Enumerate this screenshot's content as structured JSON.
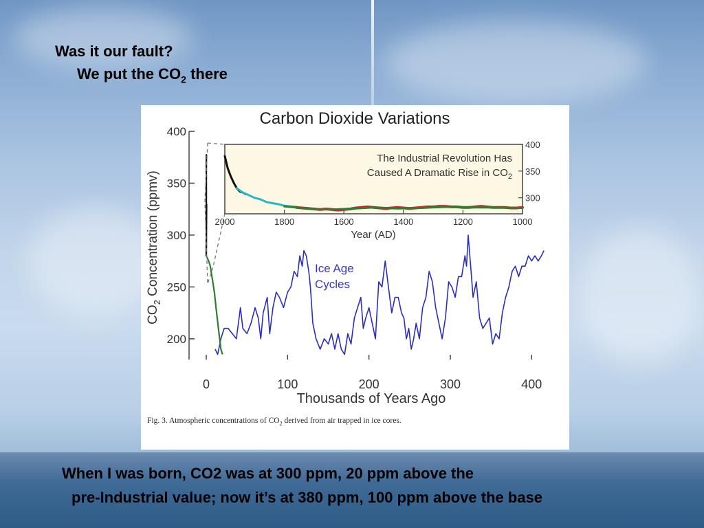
{
  "slide": {
    "heading": "Was it our fault?",
    "subheading_pre": "We put the CO",
    "subheading_sub": "2",
    "subheading_post": " there",
    "bottom_line1": "When I was born, CO2 was at 300 ppm, 20 ppm above the",
    "bottom_line2": "pre-Industrial value; now it’s at 380 ppm, 100 ppm above the base"
  },
  "figure": {
    "caption_pre": "Fig. 3. Atmospheric concentrations of CO",
    "caption_sub": "2",
    "caption_post": " derived from air trapped in ice cores."
  },
  "chart_data": [
    {
      "type": "line",
      "title": "Carbon Dioxide Variations",
      "xlabel": "Thousands of Years Ago",
      "ylabel": "CO2 Concentration (ppmv)",
      "ylabel_sub": "2",
      "ylabel_parts": [
        "CO",
        "2",
        " Concentration (ppmv)"
      ],
      "xlim": [
        0,
        430
      ],
      "ylim": [
        180,
        400
      ],
      "xticks": [
        0,
        100,
        200,
        300,
        400
      ],
      "yticks": [
        200,
        250,
        300,
        350,
        400
      ],
      "annotation": [
        "Ice Age",
        "Cycles"
      ],
      "series": [
        {
          "color": "#2b2fb8",
          "x": [
            11,
            14,
            18,
            22,
            27,
            32,
            37,
            42,
            45,
            50,
            55,
            60,
            64,
            67,
            70,
            75,
            78,
            82,
            86,
            90,
            95,
            100,
            104,
            108,
            112,
            115,
            118,
            120,
            123,
            126,
            128,
            131,
            135,
            140,
            145,
            150,
            154,
            158,
            162,
            166,
            170,
            174,
            178,
            182,
            186,
            190,
            193,
            196,
            200,
            204,
            208,
            212,
            216,
            220,
            224,
            228,
            232,
            236,
            240,
            243,
            246,
            249,
            252,
            255,
            258,
            262,
            266,
            270,
            274,
            278,
            282,
            286,
            290,
            294,
            298,
            302,
            306,
            310,
            314,
            318,
            320,
            322,
            325,
            328,
            332,
            336,
            340,
            344,
            348,
            352,
            356,
            360,
            364,
            368,
            372,
            376,
            380,
            384,
            388,
            392,
            396,
            400,
            404,
            408,
            412,
            415
          ],
          "y": [
            190,
            185,
            200,
            210,
            210,
            205,
            200,
            230,
            210,
            205,
            215,
            230,
            220,
            200,
            225,
            240,
            205,
            230,
            245,
            240,
            230,
            245,
            250,
            265,
            260,
            280,
            270,
            285,
            280,
            265,
            250,
            215,
            200,
            190,
            200,
            195,
            205,
            190,
            205,
            190,
            185,
            205,
            195,
            220,
            230,
            240,
            210,
            220,
            230,
            215,
            200,
            255,
            250,
            275,
            250,
            225,
            240,
            240,
            225,
            220,
            200,
            210,
            190,
            200,
            215,
            200,
            230,
            240,
            265,
            255,
            230,
            215,
            200,
            220,
            255,
            250,
            240,
            260,
            260,
            280,
            270,
            300,
            270,
            240,
            255,
            220,
            210,
            215,
            220,
            195,
            205,
            200,
            225,
            240,
            250,
            265,
            270,
            260,
            270,
            270,
            280,
            275,
            280,
            275,
            280,
            285
          ]
        },
        {
          "color": "#2e7d32",
          "x": [
            0,
            3,
            5,
            7,
            10,
            12,
            15,
            18,
            20
          ],
          "y": [
            280,
            275,
            270,
            260,
            245,
            230,
            210,
            190,
            185
          ]
        },
        {
          "color": "#29b6c8",
          "x": [
            0,
            0.3,
            0.6,
            0.9
          ],
          "y": [
            280,
            300,
            315,
            330
          ]
        },
        {
          "color": "#111111",
          "x": [
            0,
            0.05,
            0.1,
            0.15
          ],
          "y": [
            280,
            330,
            360,
            378
          ]
        }
      ]
    },
    {
      "type": "line",
      "title": "The Industrial Revolution Has Caused A Dramatic Rise in CO2",
      "title_lines": [
        "The Industrial Revolution Has",
        "Caused A Dramatic Rise in CO"
      ],
      "title_sub": "2",
      "xlabel": "Year (AD)",
      "xlim": [
        2000,
        1000
      ],
      "ylim": [
        270,
        400
      ],
      "xticks": [
        2000,
        1800,
        1600,
        1400,
        1200,
        1000
      ],
      "yticks": [
        300,
        350,
        400
      ],
      "series": [
        {
          "color": "#111111",
          "x": [
            2000,
            1990,
            1980,
            1970,
            1960,
            1950,
            1940,
            1930
          ],
          "y": [
            378,
            355,
            340,
            328,
            318,
            312,
            310,
            307
          ]
        },
        {
          "color": "#29b6c8",
          "x": [
            1960,
            1940,
            1920,
            1900,
            1880,
            1860,
            1840,
            1820,
            1800,
            1780,
            1760
          ],
          "y": [
            318,
            310,
            305,
            300,
            297,
            292,
            290,
            288,
            285,
            284,
            283
          ]
        },
        {
          "color": "#c62828",
          "x": [
            1760,
            1740,
            1720,
            1700,
            1680,
            1660,
            1640,
            1620,
            1600,
            1580,
            1560,
            1540,
            1520,
            1500,
            1480,
            1460,
            1440,
            1420,
            1400,
            1380,
            1360,
            1340,
            1320,
            1300,
            1280,
            1260,
            1240,
            1220,
            1200,
            1180,
            1160,
            1140,
            1120,
            1100,
            1080,
            1060,
            1040,
            1020,
            1000
          ],
          "y": [
            282,
            281,
            280,
            279,
            278,
            279,
            278,
            277,
            278,
            279,
            281,
            282,
            283,
            282,
            281,
            280,
            281,
            282,
            281,
            280,
            281,
            282,
            283,
            283,
            284,
            284,
            283,
            283,
            282,
            282,
            283,
            284,
            283,
            282,
            282,
            282,
            281,
            281,
            282
          ]
        },
        {
          "color": "#2e7d32",
          "x": [
            1800,
            1760,
            1700,
            1640,
            1560,
            1500,
            1420,
            1340,
            1260,
            1180,
            1100,
            1000
          ],
          "y": [
            284,
            282,
            279,
            278,
            280,
            282,
            280,
            281,
            283,
            282,
            282,
            281
          ]
        }
      ]
    }
  ]
}
